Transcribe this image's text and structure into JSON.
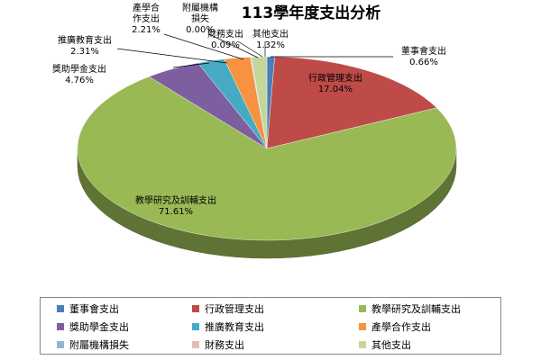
{
  "chart_data": {
    "type": "pie",
    "title": "113學年度支出分析",
    "categories": [
      "董事會支出",
      "行政管理支出",
      "教學研究及訓輔支出",
      "獎助學金支出",
      "推廣教育支出",
      "產學合作支出",
      "附屬機構損失",
      "財務支出",
      "其他支出"
    ],
    "values": [
      0.66,
      17.04,
      71.61,
      4.76,
      2.31,
      2.21,
      0.0,
      0.09,
      1.32
    ],
    "value_labels": [
      "0.66%",
      "17.04%",
      "71.61%",
      "4.76%",
      "2.31%",
      "2.21%",
      "0.00%",
      "0.09%",
      "1.32%"
    ],
    "colors": [
      "#4a7ebb",
      "#be4b48",
      "#98b954",
      "#7d5fa0",
      "#46aac5",
      "#f69240",
      "#95b3d7",
      "#e6b9b8",
      "#c4d79b"
    ],
    "legend_position": "bottom",
    "style": "3d"
  },
  "slice_label_lines": [
    [
      "董事會支出",
      "0.66%"
    ],
    [
      "行政管理支出",
      "17.04%"
    ],
    [
      "教學研究及訓輔支出",
      "71.61%"
    ],
    [
      "獎助學金支出",
      "4.76%"
    ],
    [
      "推廣教育支出",
      "2.31%"
    ],
    [
      "產學合",
      "作支出",
      "2.21%"
    ],
    [
      "附屬機構",
      "損失",
      "0.00%"
    ],
    [
      "財務支出",
      "0.09%"
    ],
    [
      "其他支出",
      "1.32%"
    ]
  ]
}
